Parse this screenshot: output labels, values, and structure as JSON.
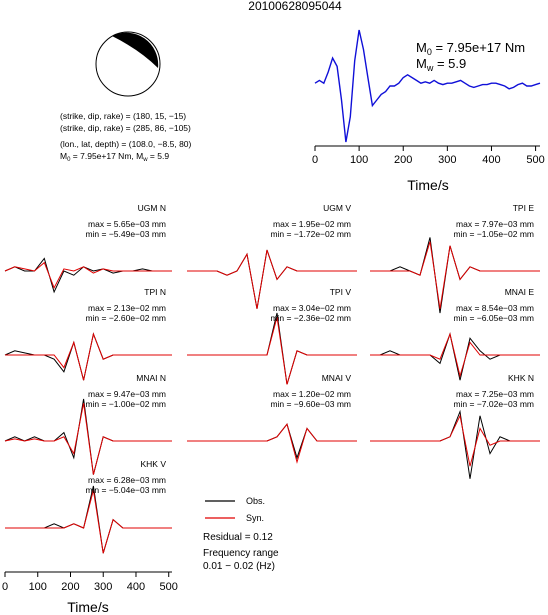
{
  "header": {
    "title": "20100628095044"
  },
  "source": {
    "beachball": {
      "compressional_color": "#000000",
      "dilatational_color": "#ffffff"
    },
    "lines": [
      "(strike, dip, rake) = (180, 15, −15)",
      "(strike, dip, rake) = (285, 86, −105)",
      "(lon., lat, depth) = (108.0, −8.5, 80)"
    ],
    "m0_prefix": "M",
    "m0_sub": "0",
    "m0_value": " = 7.95e+17 Nm, ",
    "mw_prefix": "M",
    "mw_sub": "w",
    "mw_value": " = 5.9"
  },
  "stf": {
    "m0_prefix": "M",
    "m0_sub": "0",
    "m0_value": " = 7.95e+17 Nm",
    "mw_prefix": "M",
    "mw_sub": "w",
    "mw_value": " = 5.9"
  },
  "legend": {
    "obs_label": "Obs.",
    "syn_label": "Syn.",
    "residual": "Residual = 0.12",
    "freq_title": "Frequency range",
    "freq_range": "0.01 − 0.02 (Hz)"
  },
  "colors": {
    "observed": "#000000",
    "synthetic": "#e00000",
    "stf": "#1010d8"
  },
  "chart_data": [
    {
      "type": "line",
      "name": "source-time-function",
      "xlabel": "Time/s",
      "ylabel": "",
      "xlim": [
        0,
        510
      ],
      "xticks": [
        0,
        100,
        200,
        300,
        400,
        500
      ],
      "x": [
        0,
        10,
        20,
        30,
        40,
        50,
        60,
        70,
        80,
        90,
        100,
        110,
        120,
        130,
        140,
        150,
        160,
        170,
        180,
        190,
        200,
        210,
        220,
        230,
        240,
        250,
        260,
        270,
        280,
        290,
        300,
        310,
        320,
        330,
        340,
        350,
        360,
        370,
        380,
        390,
        400,
        410,
        420,
        430,
        440,
        450,
        460,
        470,
        480,
        490,
        500,
        510
      ],
      "series": [
        {
          "values": [
            0.1,
            0.2,
            0.1,
            0.5,
            1.0,
            0.7,
            -0.5,
            -2.0,
            -1.1,
            0.9,
            2.0,
            1.3,
            0.3,
            -0.7,
            -0.5,
            -0.3,
            -0.2,
            0.0,
            0.0,
            0.1,
            0.3,
            0.4,
            0.3,
            0.2,
            0.1,
            0.15,
            0.1,
            0.2,
            0.1,
            0.05,
            0.1,
            0.1,
            0.15,
            0.2,
            0.1,
            0.0,
            -0.05,
            0.0,
            0.05,
            0.05,
            0.1,
            0.1,
            0.05,
            0.0,
            -0.1,
            -0.05,
            0.05,
            0.1,
            0.0,
            0.0,
            0.05,
            0.1
          ]
        }
      ]
    },
    {
      "type": "line",
      "name": "waveform-fits",
      "xlabel": "Time/s",
      "ylabel": "",
      "xlim": [
        0,
        510
      ],
      "xticks": [
        0,
        100,
        200,
        300,
        400,
        500
      ],
      "x": [
        0,
        30,
        60,
        90,
        120,
        150,
        180,
        210,
        240,
        270,
        300,
        330,
        360,
        390,
        420,
        450,
        480,
        510
      ],
      "series_names": [
        "Obs.",
        "Syn."
      ],
      "panels": [
        {
          "name": "UGM N",
          "max": "max = 5.65e−03 mm",
          "min": "min = −5.49e−03 mm",
          "obs": [
            0.0,
            0.1,
            0.0,
            0.0,
            0.3,
            -0.5,
            0.0,
            -0.1,
            0.1,
            0.0,
            0.05,
            -0.05,
            0.0,
            0.0,
            0.05,
            0.0,
            0.0,
            0.0
          ],
          "syn": [
            0.0,
            0.1,
            0.05,
            0.0,
            0.2,
            -0.4,
            0.05,
            0.0,
            0.1,
            -0.05,
            0.05,
            0.0,
            0.0,
            0.0,
            0.0,
            0.0,
            0.0,
            0.0
          ]
        },
        {
          "name": "UGM V",
          "max": "max = 1.95e−02 mm",
          "min": "min = −1.72e−02 mm",
          "obs": [
            0.0,
            0.0,
            0.0,
            0.0,
            -0.1,
            0.0,
            0.4,
            -0.9,
            0.5,
            -0.2,
            0.1,
            0.0,
            0.0,
            0.0,
            0.0,
            0.0,
            0.0,
            0.0
          ],
          "syn": [
            0.0,
            0.0,
            0.0,
            0.0,
            -0.1,
            0.0,
            0.4,
            -0.9,
            0.5,
            -0.2,
            0.1,
            0.0,
            0.0,
            0.0,
            0.0,
            0.0,
            0.0,
            0.0
          ]
        },
        {
          "name": "TPI E",
          "max": "max = 7.97e−03 mm",
          "min": "min = −1.05e−02 mm",
          "obs": [
            0.0,
            0.0,
            0.0,
            0.1,
            0.0,
            -0.1,
            0.8,
            -1.0,
            0.6,
            -0.2,
            0.1,
            0.0,
            0.0,
            0.0,
            0.0,
            0.0,
            0.0,
            0.0
          ],
          "syn": [
            0.0,
            0.0,
            0.0,
            0.0,
            0.0,
            -0.1,
            0.7,
            -0.9,
            0.6,
            -0.2,
            0.1,
            0.0,
            0.0,
            0.0,
            0.0,
            0.0,
            0.0,
            0.0
          ]
        },
        {
          "name": "TPI N",
          "max": "max = 2.13e−02 mm",
          "min": "min = −2.60e−02 mm",
          "obs": [
            0.0,
            0.1,
            0.05,
            0.0,
            0.0,
            -0.1,
            -0.4,
            0.3,
            -0.6,
            0.5,
            -0.1,
            0.0,
            0.0,
            0.0,
            0.0,
            0.0,
            0.0,
            0.0
          ],
          "syn": [
            0.0,
            0.0,
            0.0,
            0.0,
            0.0,
            0.0,
            -0.3,
            0.3,
            -0.6,
            0.5,
            -0.1,
            0.0,
            0.0,
            0.0,
            0.0,
            0.0,
            0.0,
            0.0
          ]
        },
        {
          "name": "TPI V",
          "max": "max = 3.04e−02 mm",
          "min": "min = −2.36e−02 mm",
          "obs": [
            0.0,
            0.0,
            0.0,
            0.0,
            0.0,
            0.0,
            0.0,
            0.0,
            0.0,
            1.0,
            -0.7,
            0.1,
            0.0,
            0.0,
            0.0,
            0.0,
            0.0,
            0.0
          ],
          "syn": [
            0.0,
            0.0,
            0.0,
            0.0,
            0.0,
            0.0,
            0.0,
            0.0,
            0.0,
            0.9,
            -0.7,
            0.1,
            0.0,
            0.0,
            0.0,
            0.0,
            0.0,
            0.0
          ]
        },
        {
          "name": "MNAI E",
          "max": "max = 8.54e−03 mm",
          "min": "min = −6.05e−03 mm",
          "obs": [
            0.0,
            0.0,
            0.1,
            0.0,
            0.0,
            0.0,
            0.0,
            -0.2,
            0.5,
            -0.6,
            0.4,
            0.1,
            -0.1,
            0.0,
            0.0,
            0.0,
            0.0,
            0.0
          ],
          "syn": [
            0.0,
            0.0,
            0.0,
            0.0,
            0.0,
            0.0,
            0.0,
            -0.1,
            0.5,
            -0.5,
            0.3,
            0.0,
            0.0,
            0.0,
            0.0,
            0.0,
            0.0,
            0.0
          ]
        },
        {
          "name": "MNAI N",
          "max": "max = 9.47e−03 mm",
          "min": "min = −1.00e−02 mm",
          "obs": [
            0.0,
            0.1,
            0.0,
            0.1,
            0.0,
            0.0,
            0.2,
            -0.4,
            1.0,
            -0.8,
            0.1,
            0.0,
            0.0,
            0.0,
            0.0,
            0.0,
            0.0,
            0.0
          ],
          "syn": [
            0.0,
            0.05,
            0.0,
            0.05,
            0.0,
            0.0,
            0.1,
            -0.3,
            0.9,
            -0.8,
            0.1,
            0.0,
            0.0,
            0.0,
            0.0,
            0.0,
            0.0,
            0.0
          ]
        },
        {
          "name": "MNAI V",
          "max": "max = 1.20e−02 mm",
          "min": "min = −9.60e−03 mm",
          "obs": [
            0.0,
            0.0,
            0.0,
            0.0,
            0.0,
            0.0,
            0.0,
            0.0,
            0.0,
            0.1,
            0.4,
            -0.4,
            0.3,
            0.0,
            0.0,
            0.0,
            0.0,
            0.0
          ],
          "syn": [
            0.0,
            0.0,
            0.0,
            0.0,
            0.0,
            0.0,
            0.0,
            0.0,
            0.0,
            0.1,
            0.4,
            -0.5,
            0.3,
            0.0,
            0.0,
            0.0,
            0.0,
            0.0
          ]
        },
        {
          "name": "KHK N",
          "max": "max = 7.25e−03 mm",
          "min": "min = −7.02e−03 mm",
          "obs": [
            0.0,
            0.0,
            0.0,
            0.0,
            0.0,
            0.0,
            0.0,
            0.0,
            0.1,
            0.7,
            -0.9,
            0.6,
            -0.3,
            0.1,
            0.0,
            0.0,
            0.0,
            0.0
          ],
          "syn": [
            0.0,
            0.0,
            0.0,
            0.0,
            0.0,
            0.0,
            0.0,
            0.0,
            0.1,
            0.6,
            -0.6,
            0.3,
            -0.1,
            0.0,
            0.0,
            0.0,
            0.0,
            0.0
          ]
        },
        {
          "name": "KHK V",
          "max": "max = 6.28e−03 mm",
          "min": "min = −5.04e−03 mm",
          "obs": [
            0.0,
            0.0,
            0.0,
            0.0,
            0.0,
            0.1,
            0.0,
            0.1,
            0.0,
            1.0,
            -0.6,
            0.2,
            0.0,
            0.0,
            0.0,
            0.0,
            0.0,
            0.0
          ],
          "syn": [
            0.0,
            0.0,
            0.0,
            0.0,
            0.0,
            0.0,
            0.0,
            0.1,
            0.0,
            0.9,
            -0.6,
            0.2,
            0.0,
            0.0,
            0.0,
            0.0,
            0.0,
            0.0
          ]
        }
      ]
    }
  ]
}
